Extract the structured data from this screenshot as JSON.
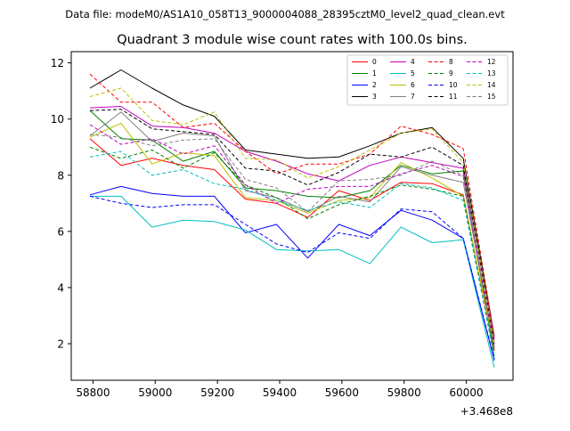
{
  "header": {
    "file_label": "Data file: modeM0/AS1A10_058T13_9000004088_28395cztM0_level2_quad_clean.evt"
  },
  "chart_data": {
    "type": "line",
    "title": "Quadrant 3 module wise count rates with 100.0s bins.",
    "xlabel": "",
    "ylabel": "",
    "x_offset_label": "+3.468e8",
    "xlim": [
      58730,
      60150
    ],
    "ylim": [
      0.7,
      12.4
    ],
    "xticks": [
      58800,
      59000,
      59200,
      59400,
      59600,
      59800,
      60000
    ],
    "yticks": [
      2,
      4,
      6,
      8,
      10,
      12
    ],
    "grid": false,
    "legend_position": "top-right",
    "x": [
      58790,
      58890,
      58990,
      59090,
      59190,
      59290,
      59390,
      59490,
      59590,
      59690,
      59790,
      59890,
      59990,
      60090
    ],
    "series": [
      {
        "name": "0",
        "color": "#ff0000",
        "dash": "solid",
        "values": [
          9.3,
          8.35,
          8.6,
          8.35,
          8.2,
          7.15,
          7.0,
          6.5,
          7.45,
          7.1,
          7.75,
          7.7,
          7.3,
          1.75
        ]
      },
      {
        "name": "1",
        "color": "#008000",
        "dash": "solid",
        "values": [
          10.3,
          9.3,
          9.25,
          8.5,
          8.85,
          7.55,
          7.45,
          7.25,
          7.2,
          7.45,
          8.35,
          8.05,
          8.15,
          1.55
        ]
      },
      {
        "name": "2",
        "color": "#0000ff",
        "dash": "solid",
        "values": [
          7.3,
          7.6,
          7.35,
          7.25,
          7.25,
          5.95,
          6.25,
          5.05,
          6.25,
          5.85,
          6.75,
          6.4,
          5.75,
          1.4
        ]
      },
      {
        "name": "3",
        "color": "#000000",
        "dash": "solid",
        "values": [
          11.1,
          11.75,
          11.1,
          10.5,
          10.1,
          8.9,
          8.75,
          8.6,
          8.65,
          9.05,
          9.5,
          9.7,
          8.6,
          2.25
        ]
      },
      {
        "name": "4",
        "color": "#bf00bf",
        "dash": "solid",
        "values": [
          10.4,
          10.45,
          9.75,
          9.7,
          9.5,
          8.85,
          8.5,
          8.05,
          7.8,
          8.35,
          8.65,
          8.45,
          8.25,
          2.15
        ]
      },
      {
        "name": "5",
        "color": "#00bfbf",
        "dash": "solid",
        "values": [
          7.25,
          7.25,
          6.15,
          6.4,
          6.35,
          6.05,
          5.35,
          5.3,
          5.35,
          4.85,
          6.15,
          5.6,
          5.7,
          1.15
        ]
      },
      {
        "name": "6",
        "color": "#bfbf00",
        "dash": "solid",
        "values": [
          9.35,
          9.85,
          8.4,
          8.8,
          8.7,
          7.2,
          7.1,
          6.65,
          7.1,
          7.2,
          8.45,
          7.9,
          7.25,
          1.85
        ]
      },
      {
        "name": "7",
        "color": "#808080",
        "dash": "solid",
        "values": [
          9.4,
          10.25,
          9.2,
          9.5,
          9.4,
          7.45,
          7.2,
          6.7,
          7.25,
          7.05,
          8.3,
          8.0,
          7.75,
          1.9
        ]
      },
      {
        "name": "8",
        "color": "#ff0000",
        "dash": "dashed",
        "values": [
          11.6,
          10.6,
          10.6,
          9.7,
          9.85,
          8.85,
          8.05,
          8.4,
          8.4,
          8.75,
          9.75,
          9.45,
          8.95,
          2.25
        ]
      },
      {
        "name": "9",
        "color": "#008000",
        "dash": "dashed",
        "values": [
          9.0,
          8.6,
          8.9,
          8.25,
          8.8,
          7.65,
          7.2,
          6.45,
          6.95,
          7.25,
          7.65,
          7.5,
          7.25,
          1.5
        ]
      },
      {
        "name": "10",
        "color": "#0000ff",
        "dash": "dashed",
        "values": [
          7.25,
          7.0,
          6.85,
          6.95,
          6.95,
          6.25,
          5.55,
          5.25,
          5.95,
          5.75,
          6.8,
          6.7,
          5.75,
          1.45
        ]
      },
      {
        "name": "11",
        "color": "#000000",
        "dash": "dashed",
        "values": [
          10.3,
          10.35,
          9.65,
          9.55,
          9.45,
          8.25,
          8.15,
          7.65,
          8.1,
          8.75,
          8.65,
          9.0,
          8.35,
          2.0
        ]
      },
      {
        "name": "12",
        "color": "#bf00bf",
        "dash": "dashed",
        "values": [
          9.8,
          9.1,
          9.3,
          8.75,
          9.05,
          7.65,
          7.0,
          7.5,
          7.6,
          7.6,
          8.05,
          8.35,
          7.95,
          1.85
        ]
      },
      {
        "name": "13",
        "color": "#00bfbf",
        "dash": "dashed",
        "values": [
          8.65,
          8.85,
          8.0,
          8.2,
          7.7,
          7.5,
          7.1,
          6.75,
          7.05,
          6.85,
          7.7,
          7.55,
          7.1,
          1.55
        ]
      },
      {
        "name": "14",
        "color": "#bfbf00",
        "dash": "dashed",
        "values": [
          10.8,
          11.1,
          9.95,
          9.8,
          10.25,
          8.6,
          8.55,
          7.9,
          8.3,
          8.9,
          9.5,
          9.65,
          8.45,
          2.05
        ]
      },
      {
        "name": "15",
        "color": "#808080",
        "dash": "dashed",
        "values": [
          9.45,
          9.35,
          9.05,
          9.25,
          9.3,
          7.85,
          7.55,
          6.7,
          7.8,
          7.85,
          8.0,
          8.5,
          8.0,
          1.9
        ]
      }
    ]
  }
}
